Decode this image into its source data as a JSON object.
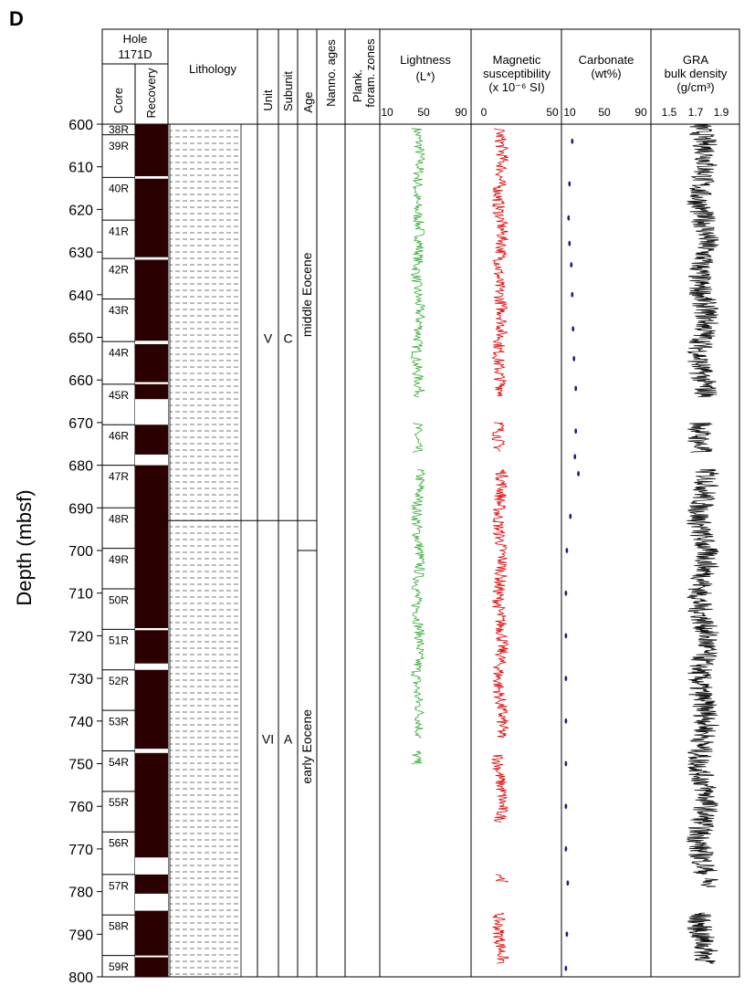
{
  "panel_letter": "D",
  "y_axis": {
    "label": "Depth (mbsf)",
    "min": 600,
    "max": 800,
    "ticks": [
      600,
      610,
      620,
      630,
      640,
      650,
      660,
      670,
      680,
      690,
      700,
      710,
      720,
      730,
      740,
      750,
      760,
      770,
      780,
      790,
      800
    ]
  },
  "headers": {
    "hole_line1": "Hole",
    "hole_line2": "1171D",
    "core": "Core",
    "recovery": "Recovery",
    "lithology": "Lithology",
    "unit": "Unit",
    "subunit": "Subunit",
    "age": "Age",
    "nanno_ages": "Nanno. ages",
    "plank_line1": "Plank.",
    "plank_line2": "foram. zones",
    "lightness_line1": "Lightness",
    "lightness_line2": "(L*)",
    "magsus_line1": "Magnetic",
    "magsus_line2": "susceptibility",
    "magsus_line3": "(x 10⁻⁶ SI)",
    "carbonate_line1": "Carbonate",
    "carbonate_line2": "(wt%)",
    "gra_line1": "GRA",
    "gra_line2": "bulk density",
    "gra_line3": "(g/cm³)"
  },
  "scales": {
    "lightness": [
      "10",
      "50",
      "90"
    ],
    "magsus": [
      "0",
      "50"
    ],
    "carbonate": [
      "10",
      "50",
      "90"
    ],
    "gra": [
      "1.5",
      "1.7",
      "1.9"
    ]
  },
  "cores": [
    {
      "name": "38R",
      "top": 600,
      "bottom": 602.5
    },
    {
      "name": "39R",
      "top": 602.5,
      "bottom": 612.5
    },
    {
      "name": "40R",
      "top": 612.5,
      "bottom": 622.5
    },
    {
      "name": "41R",
      "top": 622.5,
      "bottom": 631.5
    },
    {
      "name": "42R",
      "top": 631.5,
      "bottom": 641
    },
    {
      "name": "43R",
      "top": 641,
      "bottom": 651
    },
    {
      "name": "44R",
      "top": 651,
      "bottom": 661
    },
    {
      "name": "45R",
      "top": 661,
      "bottom": 670.5
    },
    {
      "name": "46R",
      "top": 670.5,
      "bottom": 680
    },
    {
      "name": "47R",
      "top": 680,
      "bottom": 690
    },
    {
      "name": "48R",
      "top": 690,
      "bottom": 699.5
    },
    {
      "name": "49R",
      "top": 699.5,
      "bottom": 709
    },
    {
      "name": "50R",
      "top": 709,
      "bottom": 718.5
    },
    {
      "name": "51R",
      "top": 718.5,
      "bottom": 728
    },
    {
      "name": "52R",
      "top": 728,
      "bottom": 737.5
    },
    {
      "name": "53R",
      "top": 737.5,
      "bottom": 747
    },
    {
      "name": "54R",
      "top": 747,
      "bottom": 756.5
    },
    {
      "name": "55R",
      "top": 756.5,
      "bottom": 766
    },
    {
      "name": "56R",
      "top": 766,
      "bottom": 776
    },
    {
      "name": "57R",
      "top": 776,
      "bottom": 785.5
    },
    {
      "name": "58R",
      "top": 785.5,
      "bottom": 795
    },
    {
      "name": "59R",
      "top": 795,
      "bottom": 800
    }
  ],
  "recovery_gaps": [
    [
      612.2,
      612.8
    ],
    [
      631.2,
      631.8
    ],
    [
      650.8,
      651.6
    ],
    [
      660.5,
      661
    ],
    [
      664.5,
      670.5
    ],
    [
      677.5,
      680
    ],
    [
      718.2,
      718.7
    ],
    [
      726.5,
      728
    ],
    [
      746.5,
      747.5
    ],
    [
      772,
      776
    ],
    [
      780.5,
      784.5
    ],
    [
      795,
      795.3
    ]
  ],
  "units": [
    {
      "unit": "V",
      "subunit": "C",
      "top": 600,
      "bottom": 693
    },
    {
      "unit": "VI",
      "subunit": "A",
      "top": 693,
      "bottom": 800
    }
  ],
  "ages": [
    {
      "label": "middle Eocene",
      "top": 600,
      "bottom": 700
    },
    {
      "label": "early Eocene",
      "top": 700,
      "bottom": 800
    }
  ],
  "colors": {
    "recovery": "#2b0000",
    "lightness": "#33aa33",
    "magsus": "#dd0000",
    "carbonate": "#1a237e",
    "gra": "#111111"
  },
  "chart_data": {
    "type": "line",
    "carbonate_points": [
      {
        "depth": 604,
        "wt": 12
      },
      {
        "depth": 614,
        "wt": 9
      },
      {
        "depth": 622,
        "wt": 8
      },
      {
        "depth": 628,
        "wt": 9
      },
      {
        "depth": 633,
        "wt": 11
      },
      {
        "depth": 640,
        "wt": 12
      },
      {
        "depth": 648,
        "wt": 13
      },
      {
        "depth": 655,
        "wt": 14
      },
      {
        "depth": 662,
        "wt": 16
      },
      {
        "depth": 672,
        "wt": 16
      },
      {
        "depth": 678,
        "wt": 15
      },
      {
        "depth": 682,
        "wt": 19
      },
      {
        "depth": 692,
        "wt": 10
      },
      {
        "depth": 700,
        "wt": 6
      },
      {
        "depth": 710,
        "wt": 5
      },
      {
        "depth": 720,
        "wt": 5
      },
      {
        "depth": 730,
        "wt": 5
      },
      {
        "depth": 740,
        "wt": 5
      },
      {
        "depth": 750,
        "wt": 5
      },
      {
        "depth": 760,
        "wt": 5
      },
      {
        "depth": 770,
        "wt": 5
      },
      {
        "depth": 778,
        "wt": 7
      },
      {
        "depth": 790,
        "wt": 6
      },
      {
        "depth": 798,
        "wt": 5
      }
    ],
    "lightness_intervals": [
      [
        601,
        664
      ],
      [
        670,
        677
      ],
      [
        681,
        744
      ],
      [
        747,
        750
      ]
    ],
    "magsus_intervals": [
      [
        601,
        664
      ],
      [
        670,
        677
      ],
      [
        681,
        744
      ],
      [
        748,
        764
      ],
      [
        776,
        778
      ],
      [
        785,
        797
      ]
    ],
    "gra_intervals": [
      [
        600,
        664
      ],
      [
        670,
        677
      ],
      [
        681,
        776
      ],
      [
        777,
        779
      ],
      [
        785,
        797
      ]
    ]
  }
}
